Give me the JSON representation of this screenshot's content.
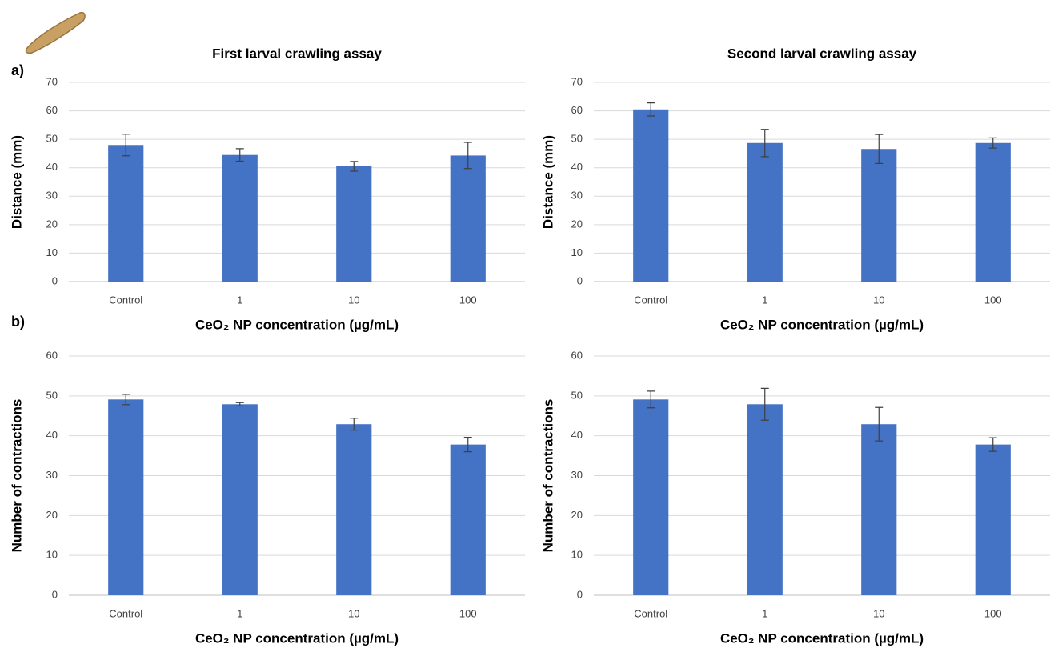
{
  "chart_data": [
    {
      "type": "bar",
      "title": "First larval crawling assay",
      "panel_label": "a)",
      "y_label": "Distance (mm)",
      "x_label": "CeO₂ NP concentration (µg/mL)",
      "categories": [
        "Control",
        "1",
        "10",
        "100"
      ],
      "values": [
        48,
        44.5,
        40.5,
        44.3
      ],
      "errors": [
        3.8,
        2.2,
        1.7,
        4.6
      ],
      "color": "#4472c4",
      "ylim": [
        0,
        70
      ],
      "yticks": [
        0,
        10,
        20,
        30,
        40,
        50,
        60,
        70
      ],
      "grid": true
    },
    {
      "type": "bar",
      "title": "Second larval crawling assay",
      "y_label": "Distance (mm)",
      "x_label": "CeO₂ NP concentration (µg/mL)",
      "categories": [
        "Control",
        "1",
        "10",
        "100"
      ],
      "values": [
        60.5,
        48.7,
        46.6,
        48.7
      ],
      "errors": [
        2.3,
        4.8,
        5.1,
        1.8
      ],
      "color": "#4472c4",
      "ylim": [
        0,
        70
      ],
      "yticks": [
        0,
        10,
        20,
        30,
        40,
        50,
        60,
        70
      ],
      "grid": true
    },
    {
      "type": "bar",
      "panel_label": "b)",
      "y_label": "Number of contractions",
      "x_label": "CeO₂ NP concentration (µg/mL)",
      "categories": [
        "Control",
        "1",
        "10",
        "100"
      ],
      "values": [
        49.1,
        47.9,
        42.9,
        37.8
      ],
      "errors": [
        1.3,
        0.4,
        1.5,
        1.8
      ],
      "color": "#4472c4",
      "ylim": [
        0,
        60
      ],
      "yticks": [
        0,
        10,
        20,
        30,
        40,
        50,
        60
      ],
      "grid": true
    },
    {
      "type": "bar",
      "y_label": "Number of contractions",
      "x_label": "CeO₂ NP concentration (µg/mL)",
      "categories": [
        "Control",
        "1",
        "10",
        "100"
      ],
      "values": [
        49.1,
        47.9,
        42.9,
        37.8
      ],
      "errors": [
        2.1,
        4.0,
        4.2,
        1.7
      ],
      "color": "#4472c4",
      "ylim": [
        0,
        60
      ],
      "yticks": [
        0,
        10,
        20,
        30,
        40,
        50,
        60
      ],
      "grid": true
    }
  ]
}
